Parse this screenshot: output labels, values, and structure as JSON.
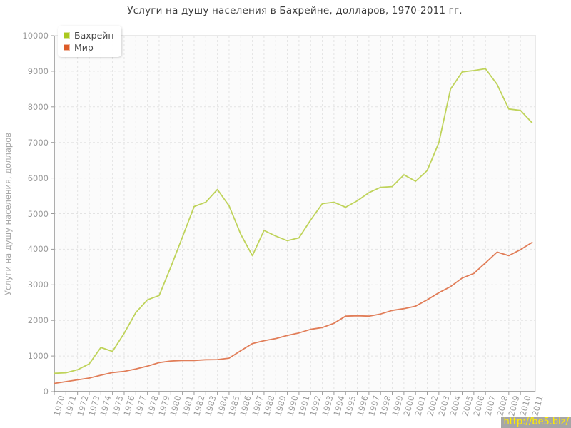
{
  "page": {
    "watermark": "http://be5.biz/"
  },
  "chart_data": {
    "type": "line",
    "title": "Услуги на душу населения в Бахрейне, долларов, 1970-2011 гг.",
    "xlabel": "",
    "ylabel": "Услуги на душу населения, долларов",
    "ylim": [
      0,
      10000
    ],
    "y_ticks": [
      0,
      1000,
      2000,
      3000,
      4000,
      5000,
      6000,
      7000,
      8000,
      9000,
      10000
    ],
    "grid": true,
    "legend_position": "top-left",
    "categories": [
      1970,
      1971,
      1972,
      1973,
      1974,
      1975,
      1976,
      1977,
      1978,
      1979,
      1980,
      1981,
      1982,
      1983,
      1984,
      1985,
      1986,
      1987,
      1988,
      1989,
      1990,
      1991,
      1992,
      1993,
      1994,
      1995,
      1996,
      1997,
      1998,
      1999,
      2000,
      2001,
      2002,
      2003,
      2004,
      2005,
      2006,
      2007,
      2008,
      2009,
      2010,
      2011
    ],
    "series": [
      {
        "name": "Бахрейн",
        "color": "#aac81e",
        "line_color": "#bfd35a",
        "values": [
          515,
          530,
          615,
          780,
          1240,
          1130,
          1640,
          2220,
          2580,
          2700,
          3500,
          4340,
          5200,
          5320,
          5680,
          5220,
          4420,
          3820,
          4530,
          4370,
          4240,
          4320,
          4820,
          5280,
          5320,
          5180,
          5360,
          5590,
          5740,
          5760,
          6090,
          5910,
          6210,
          7000,
          8500,
          8980,
          9020,
          9070,
          8630,
          7940,
          7900,
          7550
        ]
      },
      {
        "name": "Мир",
        "color": "#dc5b28",
        "line_color": "#e17d58",
        "values": [
          230,
          280,
          330,
          380,
          460,
          535,
          570,
          635,
          715,
          815,
          860,
          875,
          875,
          895,
          900,
          940,
          1150,
          1350,
          1430,
          1490,
          1580,
          1650,
          1750,
          1800,
          1920,
          2120,
          2130,
          2120,
          2180,
          2280,
          2330,
          2400,
          2580,
          2780,
          2950,
          3190,
          3320,
          3620,
          3920,
          3820,
          3990,
          4190
        ]
      }
    ]
  }
}
